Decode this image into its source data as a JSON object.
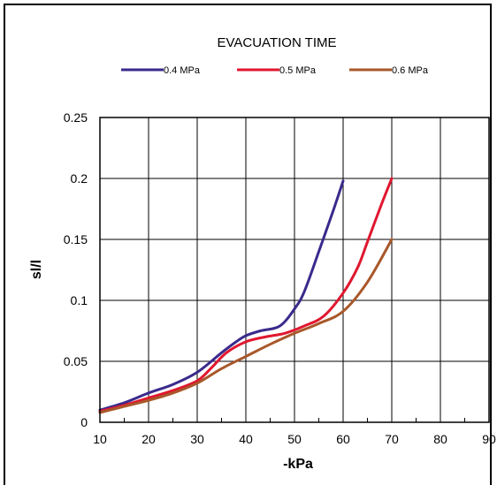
{
  "chart_data": {
    "type": "line",
    "title": "EVACUATION TIME",
    "xlabel": "-kPa",
    "ylabel": "sl/l",
    "xlim": [
      10,
      90
    ],
    "ylim": [
      0,
      0.25
    ],
    "x_ticks": [
      "10",
      "20",
      "30",
      "40",
      "50",
      "60",
      "70",
      "80",
      "90"
    ],
    "y_ticks": [
      "0",
      "0.05",
      "0.1",
      "0.15",
      "0.2",
      "0.25"
    ],
    "grid": true,
    "legend_position": "top",
    "series": [
      {
        "name": "0.4 MPa",
        "color": "#3a2a8c",
        "x": [
          10,
          15,
          20,
          25,
          30,
          35,
          38,
          40,
          43,
          47,
          50,
          52,
          55,
          58,
          60
        ],
        "y": [
          0.01,
          0.016,
          0.024,
          0.031,
          0.041,
          0.057,
          0.066,
          0.071,
          0.075,
          0.079,
          0.093,
          0.107,
          0.14,
          0.174,
          0.198
        ]
      },
      {
        "name": "0.5 MPa",
        "color": "#e0172f",
        "x": [
          10,
          15,
          20,
          25,
          30,
          33,
          36,
          40,
          44,
          48,
          52,
          56,
          60,
          63,
          65,
          68,
          70
        ],
        "y": [
          0.009,
          0.014,
          0.02,
          0.026,
          0.034,
          0.045,
          0.057,
          0.066,
          0.07,
          0.073,
          0.079,
          0.087,
          0.106,
          0.127,
          0.148,
          0.18,
          0.2
        ]
      },
      {
        "name": "0.6 MPa",
        "color": "#a8582a",
        "x": [
          10,
          15,
          20,
          25,
          30,
          35,
          40,
          45,
          50,
          55,
          60,
          65,
          70
        ],
        "y": [
          0.008,
          0.013,
          0.018,
          0.024,
          0.032,
          0.044,
          0.054,
          0.064,
          0.073,
          0.081,
          0.091,
          0.115,
          0.15
        ]
      }
    ]
  }
}
